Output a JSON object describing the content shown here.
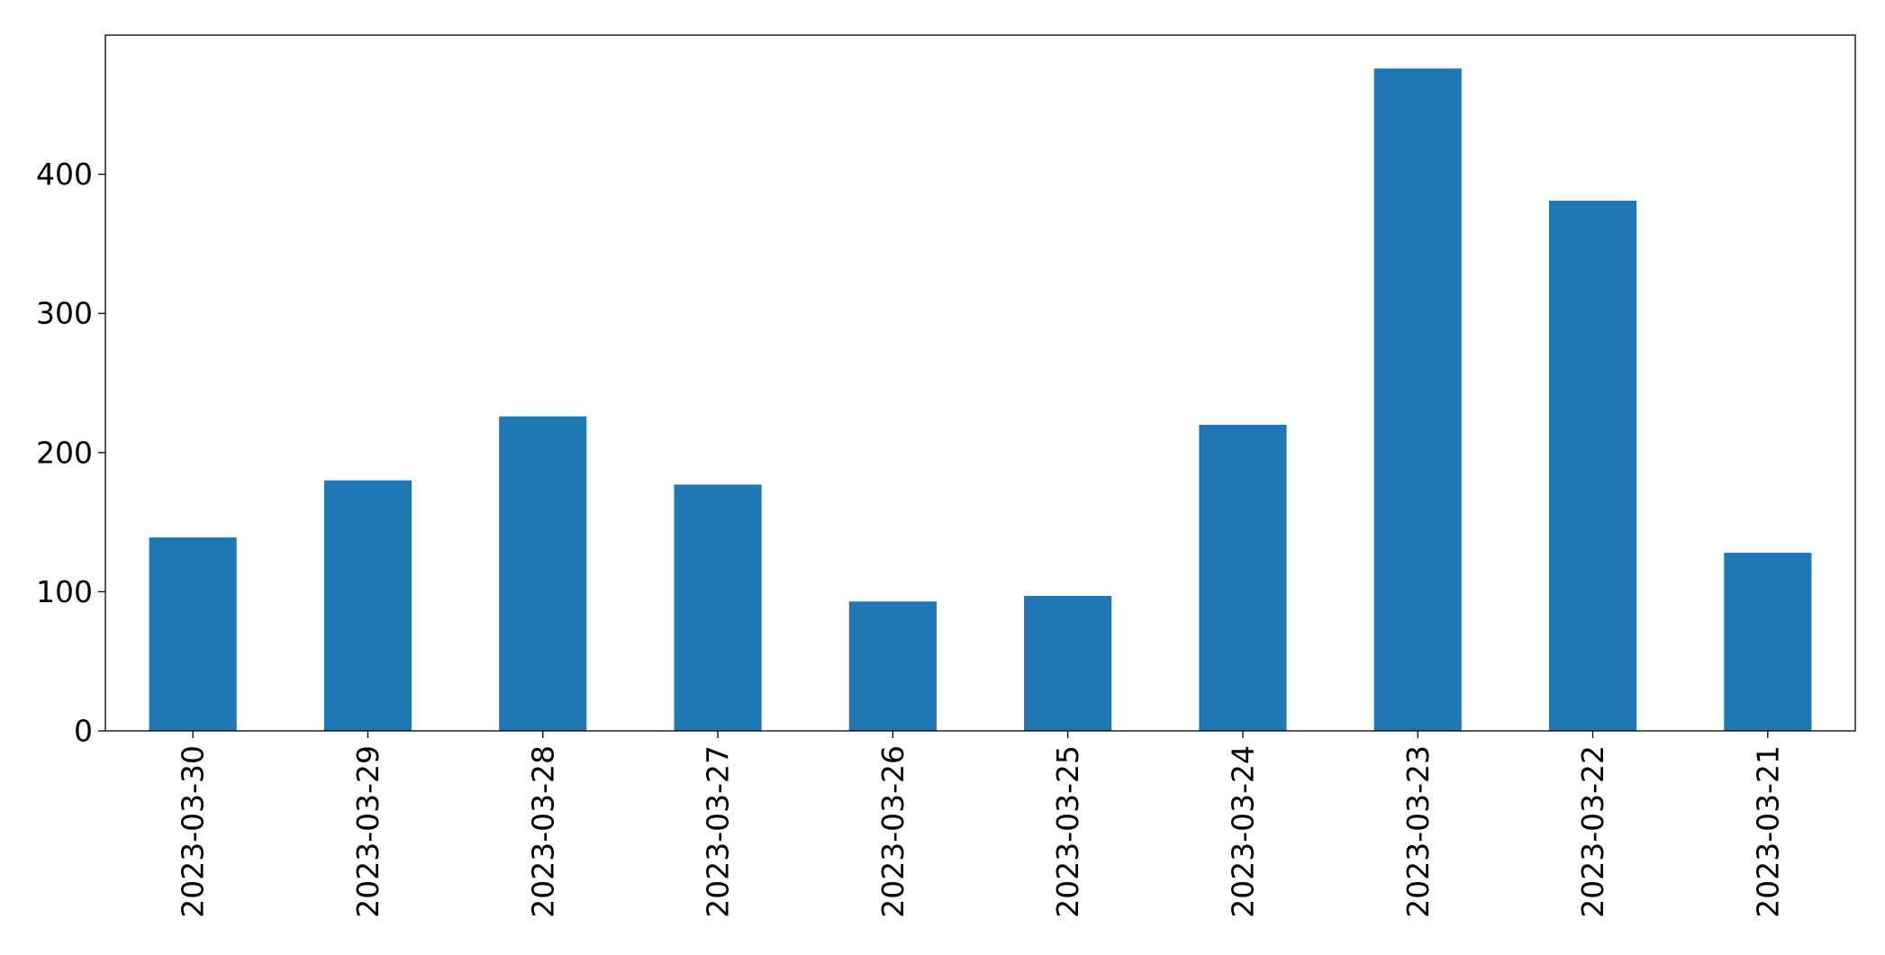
{
  "chart_data": {
    "type": "bar",
    "title": "",
    "xlabel": "",
    "ylabel": "",
    "categories": [
      "2023-03-30",
      "2023-03-29",
      "2023-03-28",
      "2023-03-27",
      "2023-03-26",
      "2023-03-25",
      "2023-03-24",
      "2023-03-23",
      "2023-03-22",
      "2023-03-21"
    ],
    "values": [
      139,
      180,
      226,
      177,
      93,
      97,
      220,
      476,
      381,
      128
    ],
    "ylim": [
      0,
      500
    ],
    "yticks": [
      0,
      100,
      200,
      300,
      400
    ],
    "ytick_labels": [
      "0",
      "100",
      "200",
      "300",
      "400"
    ],
    "bar_color": "#1f77b4",
    "grid": false,
    "legend": "none"
  }
}
